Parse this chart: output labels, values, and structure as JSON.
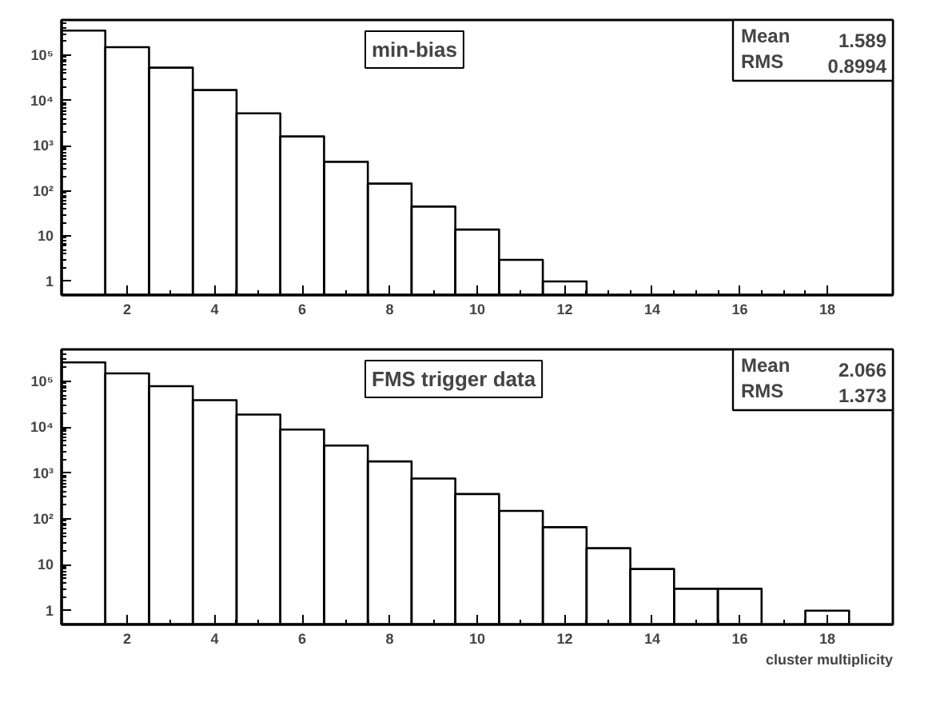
{
  "chart_data": [
    {
      "type": "histogram",
      "title": "min-bias",
      "bins": [
        0.5,
        1.5,
        2.5,
        3.5,
        4.5,
        5.5,
        6.5,
        7.5,
        8.5,
        9.5,
        10.5,
        11.5,
        12.5,
        13.5,
        14.5,
        15.5,
        16.5,
        17.5,
        18.5,
        19.5
      ],
      "values": [
        350000,
        150000,
        53000,
        17000,
        5200,
        1600,
        440,
        145,
        45,
        14,
        3,
        1,
        null,
        null,
        null,
        null,
        null,
        null,
        null
      ],
      "color": "#000000",
      "log": true,
      "grid": false,
      "legend": false,
      "xlim": [
        0.5,
        19.5
      ],
      "xticks": [
        2,
        4,
        6,
        8,
        10,
        12,
        14,
        16,
        18
      ],
      "ylim": [
        0.5,
        600000
      ],
      "yticks": [
        1,
        10,
        {
          "value": 100,
          "label": "10²"
        },
        {
          "value": 1000,
          "label": "10³"
        },
        {
          "value": 10000,
          "label": "10⁴"
        },
        {
          "value": 100000,
          "label": "10⁵"
        }
      ],
      "annotations": [
        "Mean 1.589",
        "RMS 0.8994"
      ]
    },
    {
      "type": "histogram",
      "title": "FMS trigger data",
      "xlabel": "cluster multiplicity",
      "bins": [
        0.5,
        1.5,
        2.5,
        3.5,
        4.5,
        5.5,
        6.5,
        7.5,
        8.5,
        9.5,
        10.5,
        11.5,
        12.5,
        13.5,
        14.5,
        15.5,
        16.5,
        17.5,
        18.5,
        19.5
      ],
      "values": [
        260000,
        150000,
        79000,
        39000,
        19000,
        8900,
        4000,
        1800,
        760,
        350,
        150,
        66,
        23,
        8.1,
        3,
        3,
        null,
        1,
        null
      ],
      "color": "#000000",
      "log": true,
      "grid": false,
      "legend": false,
      "xlim": [
        0.5,
        19.5
      ],
      "xticks": [
        2,
        4,
        6,
        8,
        10,
        12,
        14,
        16,
        18
      ],
      "ylim": [
        0.5,
        500000
      ],
      "yticks": [
        1,
        10,
        {
          "value": 100,
          "label": "10²"
        },
        {
          "value": 1000,
          "label": "10³"
        },
        {
          "value": 10000,
          "label": "10⁴"
        },
        {
          "value": 100000,
          "label": "10⁵"
        }
      ],
      "annotations": [
        "Mean 2.066",
        "RMS 1.373"
      ]
    }
  ]
}
